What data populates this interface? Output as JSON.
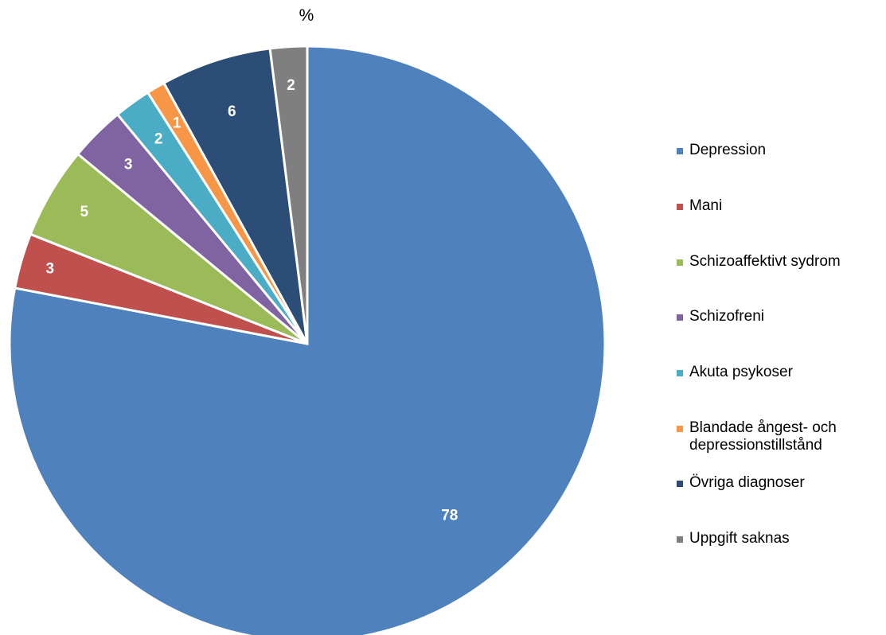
{
  "chart_data": {
    "type": "pie",
    "title": "%",
    "slices": [
      {
        "label": "Depression",
        "value": 78,
        "data_label": "78",
        "color": "#4F81BD"
      },
      {
        "label": "Mani",
        "value": 3,
        "data_label": "3",
        "color": "#C0504D"
      },
      {
        "label": "Schizoaffektivt sydrom",
        "value": 5,
        "data_label": "5",
        "color": "#9BBB59"
      },
      {
        "label": "Schizofreni",
        "value": 3,
        "data_label": "3",
        "color": "#8064A2"
      },
      {
        "label": "Akuta psykoser",
        "value": 2,
        "data_label": "2",
        "color": "#4BACC6"
      },
      {
        "label": "Blandade ångest- och depressionstillstånd",
        "value": 1,
        "data_label": "1",
        "color": "#F79646"
      },
      {
        "label": "Övriga diagnoser",
        "value": 6,
        "data_label": "6",
        "color": "#2C4D75"
      },
      {
        "label": "Uppgift saknas",
        "value": 2,
        "data_label": "2",
        "color": "#7F7F7F"
      }
    ],
    "legend_position": "right",
    "start_angle": "12 o'clock",
    "direction": "clockwise"
  }
}
